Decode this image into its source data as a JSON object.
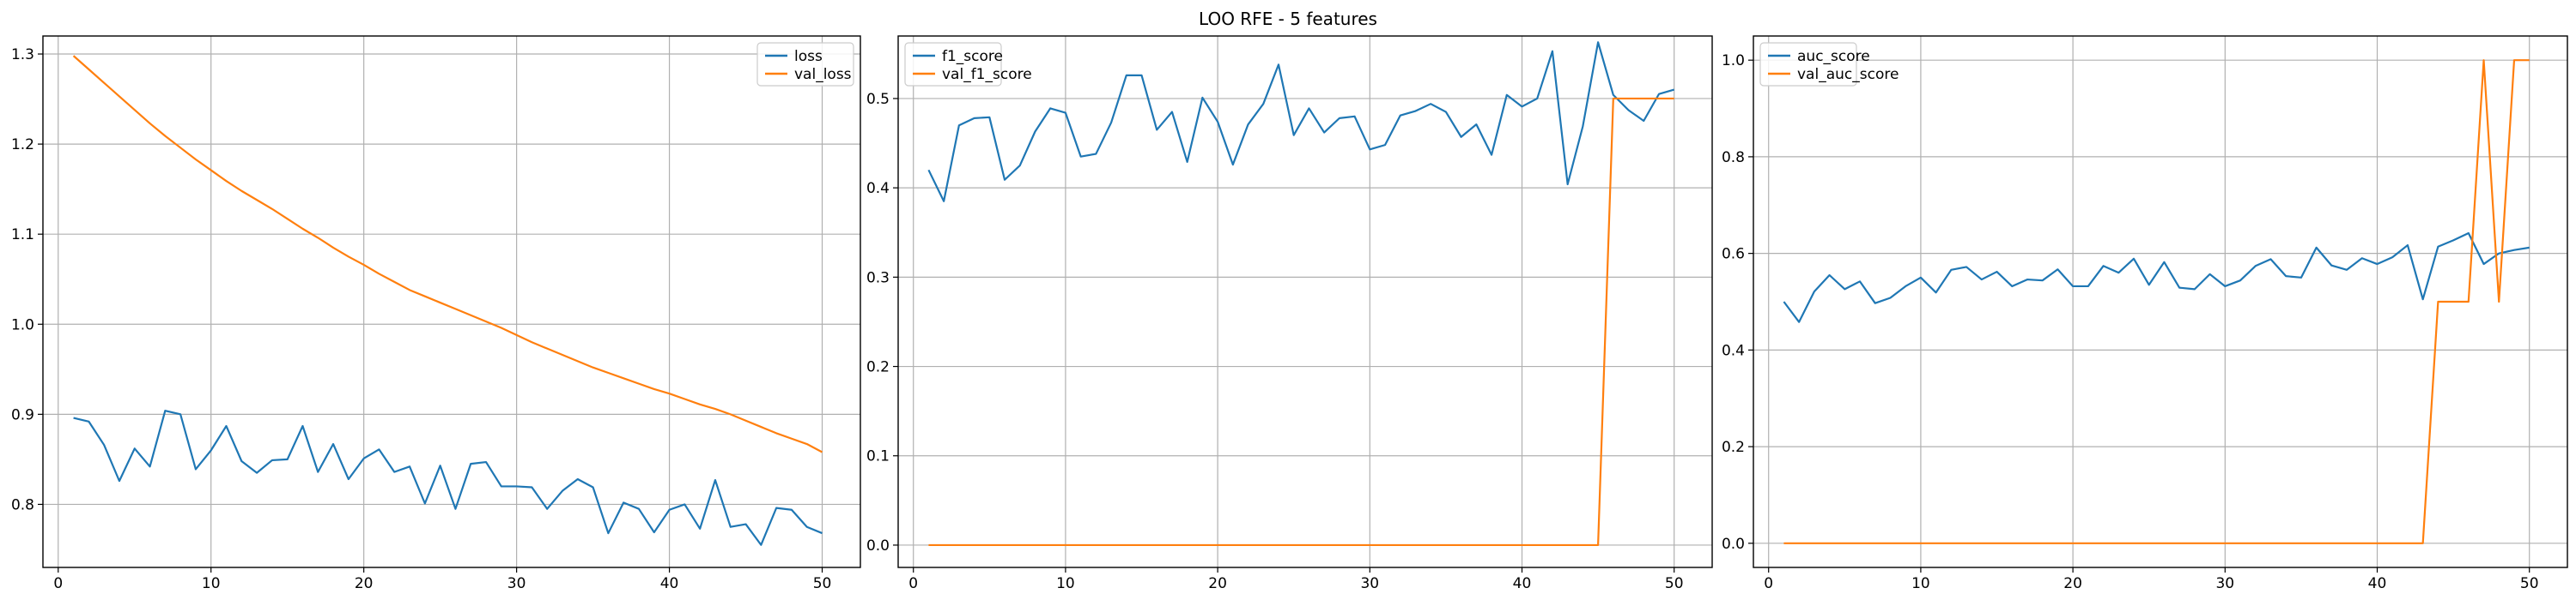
{
  "figure": {
    "title": "LOO RFE - 5 features"
  },
  "colors": {
    "series1": "#1f77b4",
    "series2": "#ff7f0e",
    "grid": "#b0b0b0"
  },
  "chart_data": [
    {
      "type": "line",
      "legend_position": "top-right",
      "grid": true,
      "xlim": [
        -1,
        52.5
      ],
      "ylim": [
        0.73,
        1.32
      ],
      "xticks": [
        0,
        10,
        20,
        30,
        40,
        50
      ],
      "yticks": [
        0.8,
        0.9,
        1.0,
        1.1,
        1.2,
        1.3
      ],
      "ytick_labels": [
        "0.8",
        "0.9",
        "1.0",
        "1.1",
        "1.2",
        "1.3"
      ],
      "x": [
        1,
        2,
        3,
        4,
        5,
        6,
        7,
        8,
        9,
        10,
        11,
        12,
        13,
        14,
        15,
        16,
        17,
        18,
        19,
        20,
        21,
        22,
        23,
        24,
        25,
        26,
        27,
        28,
        29,
        30,
        31,
        32,
        33,
        34,
        35,
        36,
        37,
        38,
        39,
        40,
        41,
        42,
        43,
        44,
        45,
        46,
        47,
        48,
        49,
        50
      ],
      "series": [
        {
          "name": "loss",
          "values": [
            0.896,
            0.892,
            0.866,
            0.826,
            0.862,
            0.842,
            0.904,
            0.9,
            0.839,
            0.86,
            0.887,
            0.848,
            0.835,
            0.849,
            0.85,
            0.887,
            0.836,
            0.867,
            0.828,
            0.851,
            0.861,
            0.836,
            0.842,
            0.801,
            0.843,
            0.795,
            0.845,
            0.847,
            0.82,
            0.82,
            0.819,
            0.795,
            0.815,
            0.828,
            0.819,
            0.768,
            0.802,
            0.795,
            0.769,
            0.794,
            0.8,
            0.773,
            0.827,
            0.775,
            0.778,
            0.755,
            0.796,
            0.794,
            0.775,
            0.768
          ]
        },
        {
          "name": "val_loss",
          "values": [
            1.298,
            1.283,
            1.268,
            1.253,
            1.238,
            1.223,
            1.209,
            1.196,
            1.183,
            1.171,
            1.159,
            1.148,
            1.138,
            1.128,
            1.117,
            1.106,
            1.096,
            1.085,
            1.075,
            1.066,
            1.056,
            1.047,
            1.038,
            1.031,
            1.024,
            1.017,
            1.01,
            1.003,
            0.996,
            0.988,
            0.98,
            0.973,
            0.966,
            0.959,
            0.952,
            0.946,
            0.94,
            0.934,
            0.928,
            0.923,
            0.917,
            0.911,
            0.906,
            0.9,
            0.893,
            0.886,
            0.879,
            0.873,
            0.867,
            0.858
          ]
        }
      ]
    },
    {
      "type": "line",
      "legend_position": "top-left",
      "grid": true,
      "xlim": [
        -1,
        52.5
      ],
      "ylim": [
        -0.025,
        0.57
      ],
      "xticks": [
        0,
        10,
        20,
        30,
        40,
        50
      ],
      "yticks": [
        0.0,
        0.1,
        0.2,
        0.3,
        0.4,
        0.5
      ],
      "ytick_labels": [
        "0.0",
        "0.1",
        "0.2",
        "0.3",
        "0.4",
        "0.5"
      ],
      "x": [
        1,
        2,
        3,
        4,
        5,
        6,
        7,
        8,
        9,
        10,
        11,
        12,
        13,
        14,
        15,
        16,
        17,
        18,
        19,
        20,
        21,
        22,
        23,
        24,
        25,
        26,
        27,
        28,
        29,
        30,
        31,
        32,
        33,
        34,
        35,
        36,
        37,
        38,
        39,
        40,
        41,
        42,
        43,
        44,
        45,
        46,
        47,
        48,
        49,
        50
      ],
      "series": [
        {
          "name": "f1_score",
          "values": [
            0.42,
            0.385,
            0.47,
            0.478,
            0.479,
            0.409,
            0.425,
            0.463,
            0.489,
            0.484,
            0.435,
            0.438,
            0.473,
            0.526,
            0.526,
            0.465,
            0.485,
            0.429,
            0.501,
            0.474,
            0.426,
            0.471,
            0.494,
            0.538,
            0.459,
            0.489,
            0.462,
            0.478,
            0.48,
            0.443,
            0.448,
            0.481,
            0.486,
            0.494,
            0.485,
            0.457,
            0.471,
            0.437,
            0.504,
            0.491,
            0.5,
            0.553,
            0.404,
            0.469,
            0.563,
            0.504,
            0.487,
            0.475,
            0.505,
            0.51
          ]
        },
        {
          "name": "val_f1_score",
          "values": [
            0,
            0,
            0,
            0,
            0,
            0,
            0,
            0,
            0,
            0,
            0,
            0,
            0,
            0,
            0,
            0,
            0,
            0,
            0,
            0,
            0,
            0,
            0,
            0,
            0,
            0,
            0,
            0,
            0,
            0,
            0,
            0,
            0,
            0,
            0,
            0,
            0,
            0,
            0,
            0,
            0,
            0,
            0,
            0,
            0,
            0.5,
            0.5,
            0.5,
            0.5,
            0.5
          ]
        }
      ]
    },
    {
      "type": "line",
      "legend_position": "top-left",
      "grid": true,
      "xlim": [
        -1,
        52.5
      ],
      "ylim": [
        -0.05,
        1.05
      ],
      "xticks": [
        0,
        10,
        20,
        30,
        40,
        50
      ],
      "yticks": [
        0.0,
        0.2,
        0.4,
        0.6,
        0.8,
        1.0
      ],
      "ytick_labels": [
        "0.0",
        "0.2",
        "0.4",
        "0.6",
        "0.8",
        "1.0"
      ],
      "x": [
        1,
        2,
        3,
        4,
        5,
        6,
        7,
        8,
        9,
        10,
        11,
        12,
        13,
        14,
        15,
        16,
        17,
        18,
        19,
        20,
        21,
        22,
        23,
        24,
        25,
        26,
        27,
        28,
        29,
        30,
        31,
        32,
        33,
        34,
        35,
        36,
        37,
        38,
        39,
        40,
        41,
        42,
        43,
        44,
        45,
        46,
        47,
        48,
        49,
        50
      ],
      "series": [
        {
          "name": "auc_score",
          "values": [
            0.5,
            0.458,
            0.521,
            0.555,
            0.526,
            0.542,
            0.497,
            0.508,
            0.532,
            0.55,
            0.519,
            0.566,
            0.572,
            0.546,
            0.562,
            0.532,
            0.546,
            0.544,
            0.567,
            0.532,
            0.532,
            0.574,
            0.56,
            0.589,
            0.535,
            0.582,
            0.529,
            0.526,
            0.557,
            0.532,
            0.544,
            0.574,
            0.588,
            0.553,
            0.55,
            0.612,
            0.575,
            0.566,
            0.59,
            0.578,
            0.592,
            0.617,
            0.505,
            0.614,
            0.627,
            0.642,
            0.578,
            0.6,
            0.607,
            0.612
          ]
        },
        {
          "name": "val_auc_score",
          "values": [
            0,
            0,
            0,
            0,
            0,
            0,
            0,
            0,
            0,
            0,
            0,
            0,
            0,
            0,
            0,
            0,
            0,
            0,
            0,
            0,
            0,
            0,
            0,
            0,
            0,
            0,
            0,
            0,
            0,
            0,
            0,
            0,
            0,
            0,
            0,
            0,
            0,
            0,
            0,
            0,
            0,
            0,
            0,
            0.5,
            0.5,
            0.5,
            1.0,
            0.5,
            1.0,
            1.0
          ]
        }
      ]
    }
  ]
}
